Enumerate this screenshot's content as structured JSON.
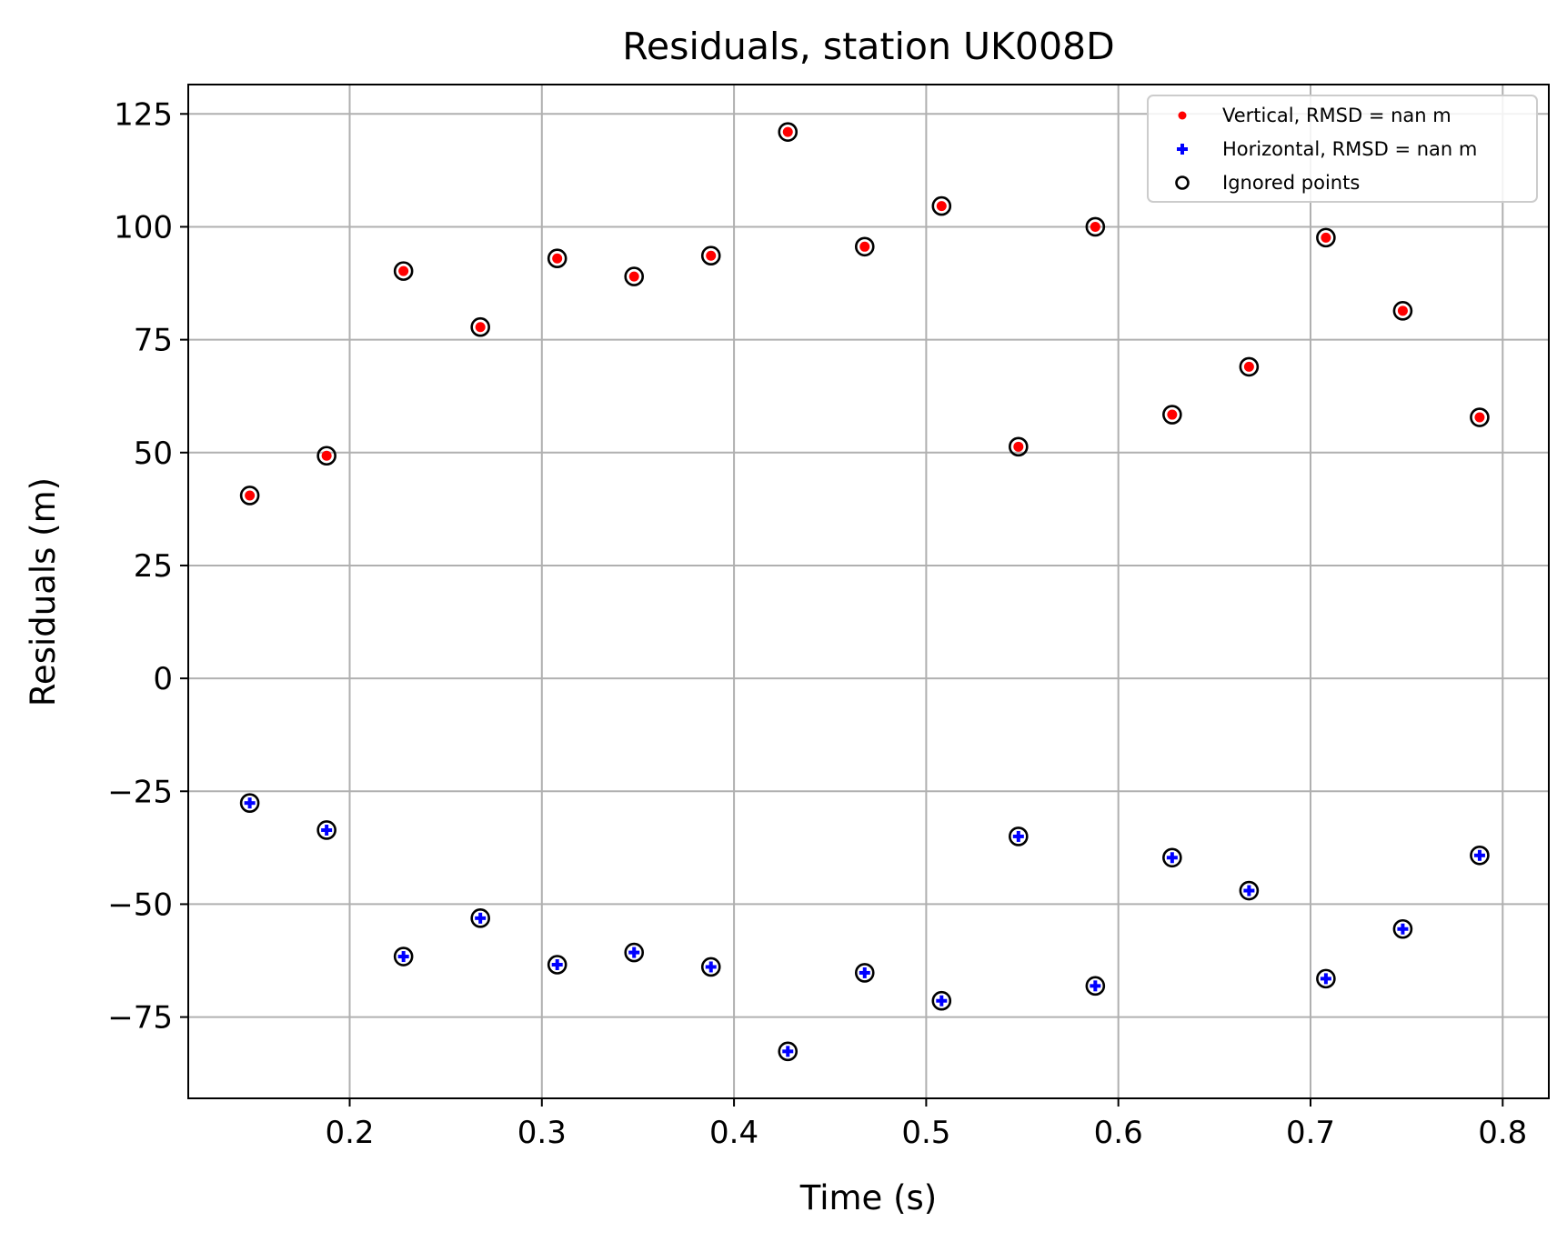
{
  "chart_data": {
    "type": "scatter",
    "title": "Residuals, station UK008D",
    "xlabel": "Time (s)",
    "ylabel": "Residuals (m)",
    "xlim": [
      0.116,
      0.824
    ],
    "ylim": [
      -93,
      131.5
    ],
    "x_ticks": [
      {
        "value": 0.2,
        "label": "0.2"
      },
      {
        "value": 0.3,
        "label": "0.3"
      },
      {
        "value": 0.4,
        "label": "0.4"
      },
      {
        "value": 0.5,
        "label": "0.5"
      },
      {
        "value": 0.6,
        "label": "0.6"
      },
      {
        "value": 0.7,
        "label": "0.7"
      },
      {
        "value": 0.8,
        "label": "0.8"
      }
    ],
    "y_ticks": [
      {
        "value": 125,
        "label": "125"
      },
      {
        "value": 100,
        "label": "100"
      },
      {
        "value": 75,
        "label": "75"
      },
      {
        "value": 50,
        "label": "50"
      },
      {
        "value": 25,
        "label": "25"
      },
      {
        "value": 0,
        "label": "0"
      },
      {
        "value": -25,
        "label": "−25"
      },
      {
        "value": -50,
        "label": "−50"
      },
      {
        "value": -75,
        "label": "−75"
      }
    ],
    "grid": true,
    "legend_position": "top-right",
    "x": [
      0.148,
      0.188,
      0.228,
      0.268,
      0.308,
      0.348,
      0.388,
      0.428,
      0.468,
      0.508,
      0.548,
      0.588,
      0.628,
      0.668,
      0.708,
      0.748,
      0.788
    ],
    "series": [
      {
        "name": "Vertical, RMSD = nan m",
        "marker": "dot",
        "color": "#ff0000",
        "values": [
          40.5,
          49.3,
          90.2,
          77.8,
          93.0,
          89.0,
          93.6,
          121.0,
          95.6,
          104.6,
          51.3,
          100.0,
          58.4,
          69.0,
          97.6,
          81.4,
          57.8
        ]
      },
      {
        "name": "Horizontal, RMSD = nan m",
        "marker": "plus",
        "color": "#0000ff",
        "values": [
          -27.6,
          -33.6,
          -61.6,
          -53.1,
          -63.4,
          -60.7,
          -63.9,
          -82.6,
          -65.2,
          -71.4,
          -35.0,
          -68.1,
          -39.7,
          -47.0,
          -66.5,
          -55.5,
          -39.2
        ]
      },
      {
        "name": "Ignored points",
        "marker": "open-circle",
        "color": "#000000",
        "overlays": [
          "Vertical, RMSD = nan m",
          "Horizontal, RMSD = nan m"
        ]
      }
    ]
  }
}
